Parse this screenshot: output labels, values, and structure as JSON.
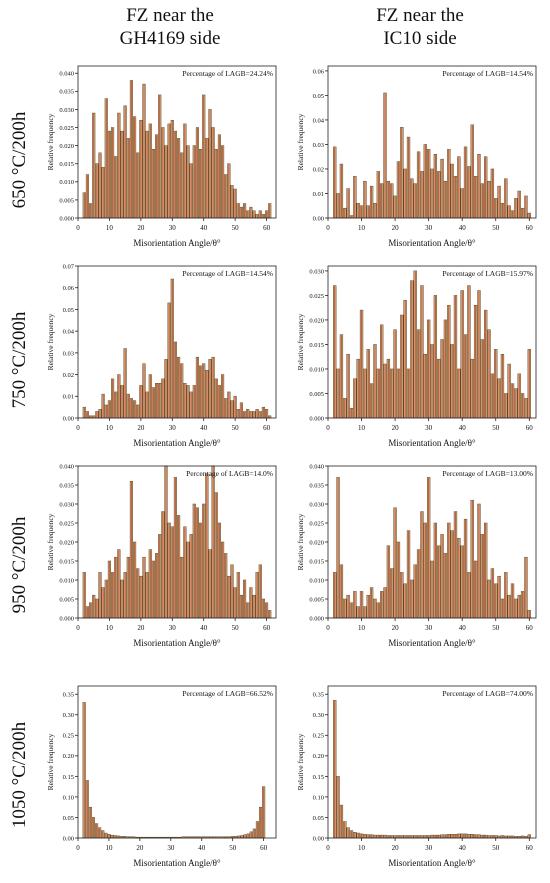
{
  "columns": [
    {
      "line1": "FZ near the",
      "line2": "GH4169 side"
    },
    {
      "line1": "FZ near the",
      "line2": "IC10 side"
    }
  ],
  "rows": [
    "650 °C/200h",
    "750 °C/200h",
    "950 °C/200h",
    "1050 °C/200h"
  ],
  "colors": {
    "bar_fill": "#d9ad7c",
    "bar_stroke": "#5a4020",
    "inner_bar": "#b23b2a",
    "axis": "#222222"
  },
  "chart_data": [
    {
      "type": "bar",
      "row": 0,
      "col": 0,
      "xlabel": "Misorientation Angle/θ°",
      "ylabel": "Relative frequency",
      "annotation": "Percentage of LAGB=24.24%",
      "xlim": [
        0,
        63
      ],
      "ylim": [
        0,
        0.042
      ],
      "xticks": [
        0,
        10,
        20,
        30,
        40,
        50,
        60
      ],
      "yticks": [
        0,
        0.005,
        0.01,
        0.015,
        0.02,
        0.025,
        0.03,
        0.035,
        0.04
      ],
      "yticklabels": [
        "0.000",
        "0.005",
        "0.010",
        "0.015",
        "0.020",
        "0.025",
        "0.030",
        "0.035",
        "0.040"
      ],
      "x": [
        2,
        3,
        4,
        5,
        6,
        7,
        8,
        9,
        10,
        11,
        12,
        13,
        14,
        15,
        16,
        17,
        18,
        19,
        20,
        21,
        22,
        23,
        24,
        25,
        26,
        27,
        28,
        29,
        30,
        31,
        32,
        33,
        34,
        35,
        36,
        37,
        38,
        39,
        40,
        41,
        42,
        43,
        44,
        45,
        46,
        47,
        48,
        49,
        50,
        51,
        52,
        53,
        54,
        55,
        56,
        57,
        58,
        59,
        60,
        61
      ],
      "values": [
        0.007,
        0.012,
        0.004,
        0.029,
        0.015,
        0.018,
        0.014,
        0.033,
        0.024,
        0.025,
        0.017,
        0.029,
        0.024,
        0.031,
        0.022,
        0.038,
        0.028,
        0.018,
        0.027,
        0.037,
        0.024,
        0.026,
        0.019,
        0.023,
        0.034,
        0.025,
        0.02,
        0.026,
        0.027,
        0.024,
        0.022,
        0.018,
        0.026,
        0.02,
        0.015,
        0.02,
        0.025,
        0.019,
        0.034,
        0.022,
        0.03,
        0.025,
        0.019,
        0.023,
        0.02,
        0.012,
        0.015,
        0.009,
        0.008,
        0.004,
        0.003,
        0.004,
        0.002,
        0.003,
        0.002,
        0.001,
        0.002,
        0.001,
        0.002,
        0.004
      ]
    },
    {
      "type": "bar",
      "row": 0,
      "col": 1,
      "xlabel": "Misorientation Angle/θ°",
      "ylabel": "Relative frequency",
      "annotation": "Percentage of LAGB=14.54%",
      "xlim": [
        0,
        62
      ],
      "ylim": [
        0,
        0.062
      ],
      "xticks": [
        0,
        10,
        20,
        30,
        40,
        50,
        60
      ],
      "yticks": [
        0,
        0.01,
        0.02,
        0.03,
        0.04,
        0.05,
        0.06
      ],
      "yticklabels": [
        "0.00",
        "0.01",
        "0.02",
        "0.03",
        "0.04",
        "0.05",
        "0.06"
      ],
      "x": [
        2,
        3,
        4,
        5,
        6,
        7,
        8,
        9,
        10,
        11,
        12,
        13,
        14,
        15,
        16,
        17,
        18,
        19,
        20,
        21,
        22,
        23,
        24,
        25,
        26,
        27,
        28,
        29,
        30,
        31,
        32,
        33,
        34,
        35,
        36,
        37,
        38,
        39,
        40,
        41,
        42,
        43,
        44,
        45,
        46,
        47,
        48,
        49,
        50,
        51,
        52,
        53,
        54,
        55,
        56,
        57,
        58,
        59,
        60
      ],
      "values": [
        0.029,
        0.01,
        0.022,
        0.004,
        0.012,
        0.001,
        0.017,
        0.006,
        0.005,
        0.015,
        0.005,
        0.013,
        0.006,
        0.019,
        0.014,
        0.051,
        0.015,
        0.014,
        0.009,
        0.023,
        0.037,
        0.02,
        0.033,
        0.016,
        0.014,
        0.027,
        0.019,
        0.03,
        0.028,
        0.02,
        0.026,
        0.019,
        0.024,
        0.015,
        0.028,
        0.022,
        0.017,
        0.025,
        0.012,
        0.029,
        0.021,
        0.038,
        0.017,
        0.026,
        0.014,
        0.025,
        0.015,
        0.02,
        0.008,
        0.013,
        0.006,
        0.016,
        0.005,
        0.003,
        0.008,
        0.011,
        0.004,
        0.009,
        0.002
      ]
    },
    {
      "type": "bar",
      "row": 1,
      "col": 0,
      "xlabel": "Misorientation Angle/θ°",
      "ylabel": "Relative frequency",
      "annotation": "Percentage of LAGB=14.54%",
      "xlim": [
        0,
        63
      ],
      "ylim": [
        0,
        0.07
      ],
      "xticks": [
        0,
        10,
        20,
        30,
        40,
        50,
        60
      ],
      "yticks": [
        0,
        0.01,
        0.02,
        0.03,
        0.04,
        0.05,
        0.06,
        0.07
      ],
      "yticklabels": [
        "0.00",
        "0.01",
        "0.02",
        "0.03",
        "0.04",
        "0.05",
        "0.06",
        "0.07"
      ],
      "x": [
        2,
        3,
        4,
        5,
        6,
        7,
        8,
        9,
        10,
        11,
        12,
        13,
        14,
        15,
        16,
        17,
        18,
        19,
        20,
        21,
        22,
        23,
        24,
        25,
        26,
        27,
        28,
        29,
        30,
        31,
        32,
        33,
        34,
        35,
        36,
        37,
        38,
        39,
        40,
        41,
        42,
        43,
        44,
        45,
        46,
        47,
        48,
        49,
        50,
        51,
        52,
        53,
        54,
        55,
        56,
        57,
        58,
        59,
        60,
        61
      ],
      "values": [
        0.005,
        0.003,
        0.001,
        0.001,
        0.003,
        0.004,
        0.011,
        0.006,
        0.008,
        0.018,
        0.012,
        0.02,
        0.015,
        0.032,
        0.011,
        0.009,
        0.008,
        0.006,
        0.015,
        0.025,
        0.012,
        0.02,
        0.014,
        0.016,
        0.016,
        0.018,
        0.027,
        0.053,
        0.064,
        0.035,
        0.028,
        0.025,
        0.016,
        0.015,
        0.012,
        0.015,
        0.028,
        0.024,
        0.025,
        0.022,
        0.027,
        0.028,
        0.018,
        0.015,
        0.02,
        0.009,
        0.012,
        0.008,
        0.01,
        0.004,
        0.007,
        0.003,
        0.004,
        0.003,
        0.003,
        0.004,
        0.003,
        0.005,
        0.004,
        0.001
      ]
    },
    {
      "type": "bar",
      "row": 1,
      "col": 1,
      "xlabel": "Misorientation Angle/θ°",
      "ylabel": "Relative frequency",
      "annotation": "Percentage of LAGB=15.97%",
      "xlim": [
        0,
        62
      ],
      "ylim": [
        0,
        0.031
      ],
      "xticks": [
        0,
        10,
        20,
        30,
        40,
        50,
        60
      ],
      "yticks": [
        0,
        0.005,
        0.01,
        0.015,
        0.02,
        0.025,
        0.03
      ],
      "yticklabels": [
        "0.000",
        "0.005",
        "0.010",
        "0.015",
        "0.020",
        "0.025",
        "0.030"
      ],
      "x": [
        2,
        3,
        4,
        5,
        6,
        7,
        8,
        9,
        10,
        11,
        12,
        13,
        14,
        15,
        16,
        17,
        18,
        19,
        20,
        21,
        22,
        23,
        24,
        25,
        26,
        27,
        28,
        29,
        30,
        31,
        32,
        33,
        34,
        35,
        36,
        37,
        38,
        39,
        40,
        41,
        42,
        43,
        44,
        45,
        46,
        47,
        48,
        49,
        50,
        51,
        52,
        53,
        54,
        55,
        56,
        57,
        58,
        59,
        60
      ],
      "values": [
        0.027,
        0.01,
        0.017,
        0.004,
        0.013,
        0.002,
        0.008,
        0.012,
        0.022,
        0.01,
        0.014,
        0.007,
        0.015,
        0.01,
        0.019,
        0.011,
        0.012,
        0.01,
        0.018,
        0.01,
        0.021,
        0.024,
        0.01,
        0.028,
        0.03,
        0.018,
        0.027,
        0.013,
        0.02,
        0.015,
        0.025,
        0.012,
        0.016,
        0.02,
        0.023,
        0.015,
        0.025,
        0.01,
        0.026,
        0.017,
        0.027,
        0.012,
        0.023,
        0.026,
        0.016,
        0.022,
        0.018,
        0.009,
        0.014,
        0.008,
        0.013,
        0.005,
        0.011,
        0.007,
        0.006,
        0.009,
        0.005,
        0.004,
        0.014
      ]
    },
    {
      "type": "bar",
      "row": 2,
      "col": 0,
      "xlabel": "Misorientation Angle/θ°",
      "ylabel": "Relative frequency",
      "annotation": "Percentage of LAGB=14.0%",
      "xlim": [
        0,
        63
      ],
      "ylim": [
        0,
        0.04
      ],
      "xticks": [
        0,
        10,
        20,
        30,
        40,
        50,
        60
      ],
      "yticks": [
        0,
        0.005,
        0.01,
        0.015,
        0.02,
        0.025,
        0.03,
        0.035,
        0.04
      ],
      "yticklabels": [
        "0.000",
        "0.005",
        "0.010",
        "0.015",
        "0.020",
        "0.025",
        "0.030",
        "0.035",
        "0.040"
      ],
      "x": [
        2,
        3,
        4,
        5,
        6,
        7,
        8,
        9,
        10,
        11,
        12,
        13,
        14,
        15,
        16,
        17,
        18,
        19,
        20,
        21,
        22,
        23,
        24,
        25,
        26,
        27,
        28,
        29,
        30,
        31,
        32,
        33,
        34,
        35,
        36,
        37,
        38,
        39,
        40,
        41,
        42,
        43,
        44,
        45,
        46,
        47,
        48,
        49,
        50,
        51,
        52,
        53,
        54,
        55,
        56,
        57,
        58,
        59,
        60,
        61
      ],
      "values": [
        0.012,
        0.003,
        0.004,
        0.006,
        0.005,
        0.012,
        0.008,
        0.01,
        0.015,
        0.012,
        0.016,
        0.018,
        0.01,
        0.012,
        0.016,
        0.036,
        0.02,
        0.013,
        0.011,
        0.016,
        0.012,
        0.018,
        0.015,
        0.017,
        0.022,
        0.028,
        0.04,
        0.025,
        0.024,
        0.037,
        0.027,
        0.016,
        0.024,
        0.02,
        0.022,
        0.03,
        0.029,
        0.025,
        0.03,
        0.038,
        0.018,
        0.04,
        0.033,
        0.025,
        0.02,
        0.017,
        0.011,
        0.014,
        0.008,
        0.012,
        0.006,
        0.01,
        0.004,
        0.008,
        0.006,
        0.012,
        0.014,
        0.005,
        0.004,
        0.002
      ]
    },
    {
      "type": "bar",
      "row": 2,
      "col": 1,
      "xlabel": "Misorientation Angle/θ°",
      "ylabel": "Relative frequency",
      "annotation": "Percentage of LAGB=13.00%",
      "xlim": [
        0,
        62
      ],
      "ylim": [
        0,
        0.04
      ],
      "xticks": [
        0,
        10,
        20,
        30,
        40,
        50,
        60
      ],
      "yticks": [
        0,
        0.005,
        0.01,
        0.015,
        0.02,
        0.025,
        0.03,
        0.035,
        0.04
      ],
      "yticklabels": [
        "0.000",
        "0.005",
        "0.010",
        "0.015",
        "0.020",
        "0.025",
        "0.030",
        "0.035",
        "0.040"
      ],
      "x": [
        2,
        3,
        4,
        5,
        6,
        7,
        8,
        9,
        10,
        11,
        12,
        13,
        14,
        15,
        16,
        17,
        18,
        19,
        20,
        21,
        22,
        23,
        24,
        25,
        26,
        27,
        28,
        29,
        30,
        31,
        32,
        33,
        34,
        35,
        36,
        37,
        38,
        39,
        40,
        41,
        42,
        43,
        44,
        45,
        46,
        47,
        48,
        49,
        50,
        51,
        52,
        53,
        54,
        55,
        56,
        57,
        58,
        59,
        60
      ],
      "values": [
        0.012,
        0.037,
        0.014,
        0.005,
        0.006,
        0.004,
        0.007,
        0.003,
        0.007,
        0.003,
        0.006,
        0.008,
        0.005,
        0.004,
        0.007,
        0.008,
        0.019,
        0.013,
        0.029,
        0.02,
        0.012,
        0.009,
        0.023,
        0.01,
        0.014,
        0.018,
        0.028,
        0.025,
        0.037,
        0.015,
        0.025,
        0.019,
        0.022,
        0.017,
        0.025,
        0.023,
        0.028,
        0.021,
        0.019,
        0.026,
        0.012,
        0.031,
        0.015,
        0.03,
        0.022,
        0.025,
        0.01,
        0.013,
        0.009,
        0.011,
        0.005,
        0.012,
        0.006,
        0.009,
        0.005,
        0.006,
        0.007,
        0.016,
        0.002
      ]
    },
    {
      "type": "bar",
      "row": 3,
      "col": 0,
      "xlabel": "Misorientation Angle/θ°",
      "ylabel": "Relative frequency",
      "annotation": "Percentage of LAGB=66.52%",
      "xlim": [
        0,
        64
      ],
      "ylim": [
        0,
        0.37
      ],
      "xticks": [
        0,
        10,
        20,
        30,
        40,
        50,
        60
      ],
      "yticks": [
        0,
        0.05,
        0.1,
        0.15,
        0.2,
        0.25,
        0.3,
        0.35
      ],
      "yticklabels": [
        "0.00",
        "0.05",
        "0.10",
        "0.15",
        "0.20",
        "0.25",
        "0.30",
        "0.35"
      ],
      "x": [
        2,
        3,
        4,
        5,
        6,
        7,
        8,
        9,
        10,
        11,
        12,
        13,
        14,
        15,
        16,
        17,
        18,
        19,
        20,
        21,
        22,
        23,
        24,
        25,
        26,
        27,
        28,
        29,
        30,
        31,
        32,
        33,
        34,
        35,
        36,
        37,
        38,
        39,
        40,
        41,
        42,
        43,
        44,
        45,
        46,
        47,
        48,
        49,
        50,
        51,
        52,
        53,
        54,
        55,
        56,
        57,
        58,
        59,
        60
      ],
      "values": [
        0.33,
        0.14,
        0.075,
        0.05,
        0.035,
        0.025,
        0.018,
        0.012,
        0.009,
        0.007,
        0.006,
        0.005,
        0.004,
        0.004,
        0.003,
        0.003,
        0.003,
        0.002,
        0.002,
        0.002,
        0.002,
        0.002,
        0.002,
        0.002,
        0.002,
        0.002,
        0.002,
        0.002,
        0.002,
        0.002,
        0.002,
        0.002,
        0.003,
        0.003,
        0.003,
        0.003,
        0.003,
        0.003,
        0.003,
        0.003,
        0.003,
        0.003,
        0.003,
        0.003,
        0.003,
        0.003,
        0.003,
        0.003,
        0.004,
        0.004,
        0.005,
        0.006,
        0.008,
        0.01,
        0.015,
        0.022,
        0.04,
        0.075,
        0.125
      ]
    },
    {
      "type": "bar",
      "row": 3,
      "col": 1,
      "xlabel": "Misorientation Angle/θ°",
      "ylabel": "Relative frequency",
      "annotation": "Percentage of LAGB=74.00%",
      "xlim": [
        0,
        62
      ],
      "ylim": [
        0,
        0.37
      ],
      "xticks": [
        0,
        10,
        20,
        30,
        40,
        50,
        60
      ],
      "yticks": [
        0,
        0.05,
        0.1,
        0.15,
        0.2,
        0.25,
        0.3,
        0.35
      ],
      "yticklabels": [
        "0.00",
        "0.05",
        "0.10",
        "0.15",
        "0.20",
        "0.25",
        "0.30",
        "0.35"
      ],
      "x": [
        2,
        3,
        4,
        5,
        6,
        7,
        8,
        9,
        10,
        11,
        12,
        13,
        14,
        15,
        16,
        17,
        18,
        19,
        20,
        21,
        22,
        23,
        24,
        25,
        26,
        27,
        28,
        29,
        30,
        31,
        32,
        33,
        34,
        35,
        36,
        37,
        38,
        39,
        40,
        41,
        42,
        43,
        44,
        45,
        46,
        47,
        48,
        49,
        50,
        51,
        52,
        53,
        54,
        55,
        56,
        57,
        58,
        59,
        60
      ],
      "values": [
        0.335,
        0.15,
        0.08,
        0.04,
        0.025,
        0.018,
        0.014,
        0.012,
        0.01,
        0.009,
        0.008,
        0.008,
        0.007,
        0.007,
        0.007,
        0.007,
        0.006,
        0.006,
        0.006,
        0.006,
        0.006,
        0.006,
        0.006,
        0.006,
        0.006,
        0.006,
        0.006,
        0.006,
        0.006,
        0.007,
        0.007,
        0.007,
        0.008,
        0.008,
        0.009,
        0.009,
        0.009,
        0.01,
        0.01,
        0.01,
        0.009,
        0.009,
        0.008,
        0.008,
        0.007,
        0.007,
        0.006,
        0.006,
        0.006,
        0.005,
        0.006,
        0.005,
        0.005,
        0.005,
        0.004,
        0.004,
        0.005,
        0.004,
        0.008
      ]
    }
  ]
}
